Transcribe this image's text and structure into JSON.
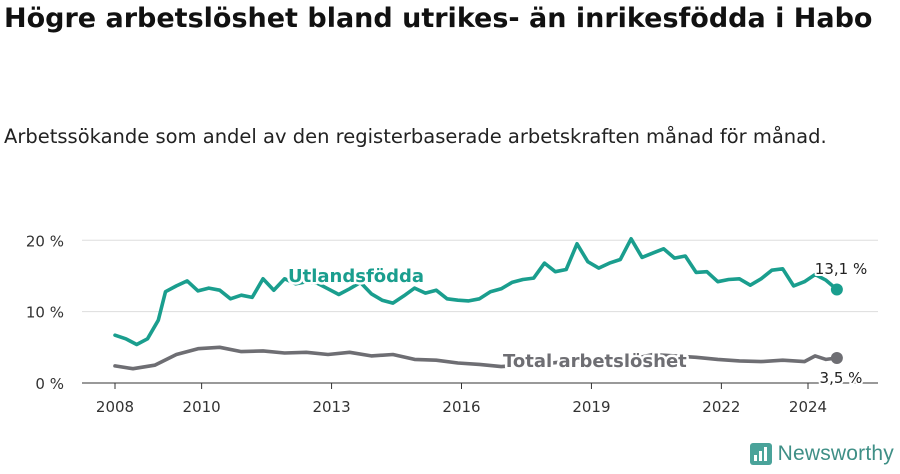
{
  "title": "Högre arbetslöshet bland utrikes- än inrikesfödda i Habo",
  "subtitle": "Arbetssökande som andel av den registerbaserade arbetskraften månad för månad.",
  "brand": {
    "name": "Newsworthy",
    "icon": "newsworthy-bar-logo"
  },
  "colors": {
    "utlandsfodda": "#1a9e8e",
    "total": "#6e6e73",
    "grid": "#dddddd",
    "axis": "#333333"
  },
  "chart_data": {
    "type": "line",
    "x_ticks": [
      "2008",
      "2010",
      "2013",
      "2016",
      "2019",
      "2022",
      "2024"
    ],
    "y_ticks": [
      "0 %",
      "10 %",
      "20 %"
    ],
    "ylim": [
      0,
      22
    ],
    "grid": "horizontal",
    "series": [
      {
        "name": "Utlandsfödda",
        "end_label": "13,1 %",
        "points": [
          [
            "2008-01",
            6.7
          ],
          [
            "2008-04",
            6.2
          ],
          [
            "2008-07",
            5.4
          ],
          [
            "2008-10",
            6.2
          ],
          [
            "2009-01",
            8.8
          ],
          [
            "2009-03",
            12.8
          ],
          [
            "2009-06",
            13.6
          ],
          [
            "2009-09",
            14.3
          ],
          [
            "2009-12",
            12.9
          ],
          [
            "2010-03",
            13.3
          ],
          [
            "2010-06",
            13.0
          ],
          [
            "2010-09",
            11.8
          ],
          [
            "2010-12",
            12.3
          ],
          [
            "2011-03",
            12.0
          ],
          [
            "2011-06",
            14.6
          ],
          [
            "2011-09",
            13.0
          ],
          [
            "2011-12",
            14.6
          ],
          [
            "2012-03",
            13.9
          ],
          [
            "2012-06",
            14.2
          ],
          [
            "2012-09",
            14.0
          ],
          [
            "2012-12",
            13.2
          ],
          [
            "2013-03",
            12.4
          ],
          [
            "2013-06",
            13.2
          ],
          [
            "2013-09",
            14.1
          ],
          [
            "2013-12",
            12.5
          ],
          [
            "2014-03",
            11.6
          ],
          [
            "2014-06",
            11.2
          ],
          [
            "2014-09",
            12.2
          ],
          [
            "2014-12",
            13.3
          ],
          [
            "2015-03",
            12.6
          ],
          [
            "2015-06",
            13.0
          ],
          [
            "2015-09",
            11.8
          ],
          [
            "2015-12",
            11.6
          ],
          [
            "2016-03",
            11.5
          ],
          [
            "2016-06",
            11.8
          ],
          [
            "2016-09",
            12.8
          ],
          [
            "2016-12",
            13.2
          ],
          [
            "2017-03",
            14.1
          ],
          [
            "2017-06",
            14.5
          ],
          [
            "2017-09",
            14.7
          ],
          [
            "2017-12",
            16.8
          ],
          [
            "2018-03",
            15.6
          ],
          [
            "2018-06",
            15.9
          ],
          [
            "2018-09",
            19.5
          ],
          [
            "2018-12",
            17.0
          ],
          [
            "2019-03",
            16.1
          ],
          [
            "2019-06",
            16.8
          ],
          [
            "2019-09",
            17.3
          ],
          [
            "2019-12",
            20.2
          ],
          [
            "2020-03",
            17.6
          ],
          [
            "2020-06",
            18.2
          ],
          [
            "2020-09",
            18.8
          ],
          [
            "2020-12",
            17.5
          ],
          [
            "2021-03",
            17.8
          ],
          [
            "2021-06",
            15.5
          ],
          [
            "2021-09",
            15.6
          ],
          [
            "2021-12",
            14.2
          ],
          [
            "2022-03",
            14.5
          ],
          [
            "2022-06",
            14.6
          ],
          [
            "2022-09",
            13.7
          ],
          [
            "2022-12",
            14.6
          ],
          [
            "2023-03",
            15.8
          ],
          [
            "2023-06",
            16.0
          ],
          [
            "2023-09",
            13.6
          ],
          [
            "2023-12",
            14.2
          ],
          [
            "2024-03",
            15.2
          ],
          [
            "2024-06",
            14.4
          ],
          [
            "2024-09",
            13.1
          ]
        ]
      },
      {
        "name": "Total arbetslöshet",
        "end_label": "3,5 %",
        "points": [
          [
            "2008-01",
            2.4
          ],
          [
            "2008-06",
            2.0
          ],
          [
            "2008-12",
            2.5
          ],
          [
            "2009-06",
            4.0
          ],
          [
            "2009-12",
            4.8
          ],
          [
            "2010-06",
            5.0
          ],
          [
            "2010-12",
            4.4
          ],
          [
            "2011-06",
            4.5
          ],
          [
            "2011-12",
            4.2
          ],
          [
            "2012-06",
            4.3
          ],
          [
            "2012-12",
            4.0
          ],
          [
            "2013-06",
            4.3
          ],
          [
            "2013-12",
            3.8
          ],
          [
            "2014-06",
            4.0
          ],
          [
            "2014-12",
            3.3
          ],
          [
            "2015-06",
            3.2
          ],
          [
            "2015-12",
            2.8
          ],
          [
            "2016-06",
            2.6
          ],
          [
            "2016-12",
            2.3
          ],
          [
            "2017-06",
            2.5
          ],
          [
            "2017-12",
            2.7
          ],
          [
            "2018-06",
            3.0
          ],
          [
            "2018-12",
            3.3
          ],
          [
            "2019-06",
            3.2
          ],
          [
            "2019-12",
            3.3
          ],
          [
            "2020-06",
            4.0
          ],
          [
            "2020-12",
            3.8
          ],
          [
            "2021-06",
            3.6
          ],
          [
            "2021-12",
            3.3
          ],
          [
            "2022-06",
            3.1
          ],
          [
            "2022-12",
            3.0
          ],
          [
            "2023-06",
            3.2
          ],
          [
            "2023-12",
            3.0
          ],
          [
            "2024-03",
            3.8
          ],
          [
            "2024-06",
            3.3
          ],
          [
            "2024-09",
            3.5
          ]
        ]
      }
    ]
  }
}
